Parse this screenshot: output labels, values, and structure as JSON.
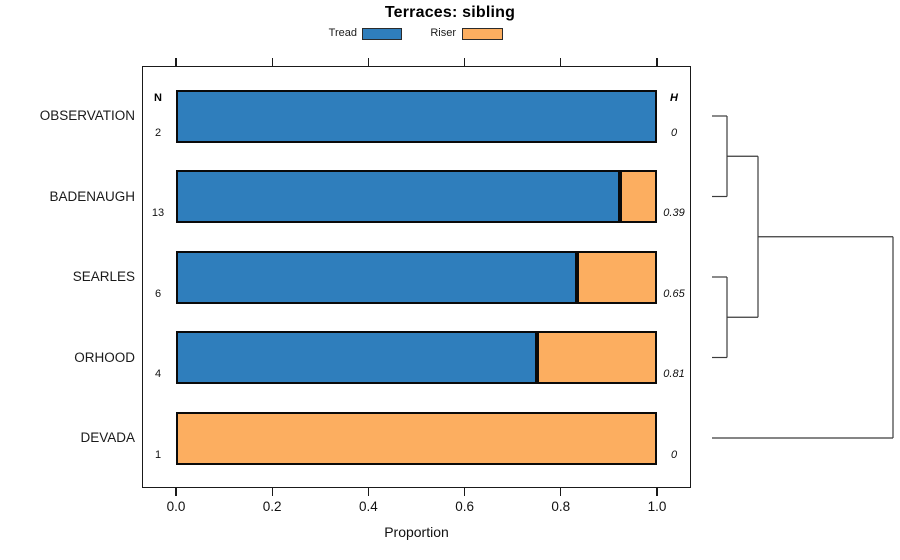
{
  "title": "Terraces: sibling",
  "legend": {
    "position": "top",
    "items": [
      {
        "label": "Tread",
        "color": "#2F7EBC"
      },
      {
        "label": "Riser",
        "color": "#FCAE60"
      }
    ]
  },
  "columns": {
    "n_header": "N",
    "h_header": "H"
  },
  "x_axis": {
    "label": "Proportion",
    "tick_labels": [
      "0.0",
      "0.2",
      "0.4",
      "0.6",
      "0.8",
      "1.0"
    ],
    "range": [
      0,
      1
    ]
  },
  "chart_data": {
    "type": "bar",
    "orientation": "horizontal",
    "stacked": true,
    "title": "Terraces: sibling",
    "xlabel": "Proportion",
    "xlim": [
      0,
      1
    ],
    "grid": false,
    "legend_position": "top",
    "categories": [
      "OBSERVATION",
      "BADENAUGH",
      "SEARLES",
      "ORHOOD",
      "DEVADA"
    ],
    "series": [
      {
        "name": "Tread",
        "color": "#2F7EBC",
        "values": [
          1.0,
          0.923,
          0.833,
          0.75,
          0.0
        ]
      },
      {
        "name": "Riser",
        "color": "#FCAE60",
        "values": [
          0.0,
          0.077,
          0.167,
          0.25,
          1.0
        ]
      }
    ],
    "rows": [
      {
        "label": "OBSERVATION",
        "n": "2",
        "h": "0",
        "tread": 1.0,
        "riser": 0.0
      },
      {
        "label": "BADENAUGH",
        "n": "13",
        "h": "0.39",
        "tread": 0.923,
        "riser": 0.077
      },
      {
        "label": "SEARLES",
        "n": "6",
        "h": "0.65",
        "tread": 0.833,
        "riser": 0.167
      },
      {
        "label": "ORHOOD",
        "n": "4",
        "h": "0.81",
        "tread": 0.75,
        "riser": 0.25
      },
      {
        "label": "DEVADA",
        "n": "1",
        "h": "0",
        "tread": 0.0,
        "riser": 1.0
      }
    ],
    "dendrogram": {
      "leaves": [
        "OBSERVATION",
        "BADENAUGH",
        "SEARLES",
        "ORHOOD",
        "DEVADA"
      ],
      "merges": [
        {
          "id": "merge-0",
          "children": [
            "OBSERVATION",
            "BADENAUGH"
          ]
        },
        {
          "id": "merge-1",
          "children": [
            "SEARLES",
            "ORHOOD"
          ]
        },
        {
          "id": "merge-2",
          "children": [
            "merge-0",
            "merge-1"
          ]
        },
        {
          "id": "merge-3",
          "children": [
            "merge-2",
            "DEVADA"
          ]
        }
      ]
    }
  }
}
